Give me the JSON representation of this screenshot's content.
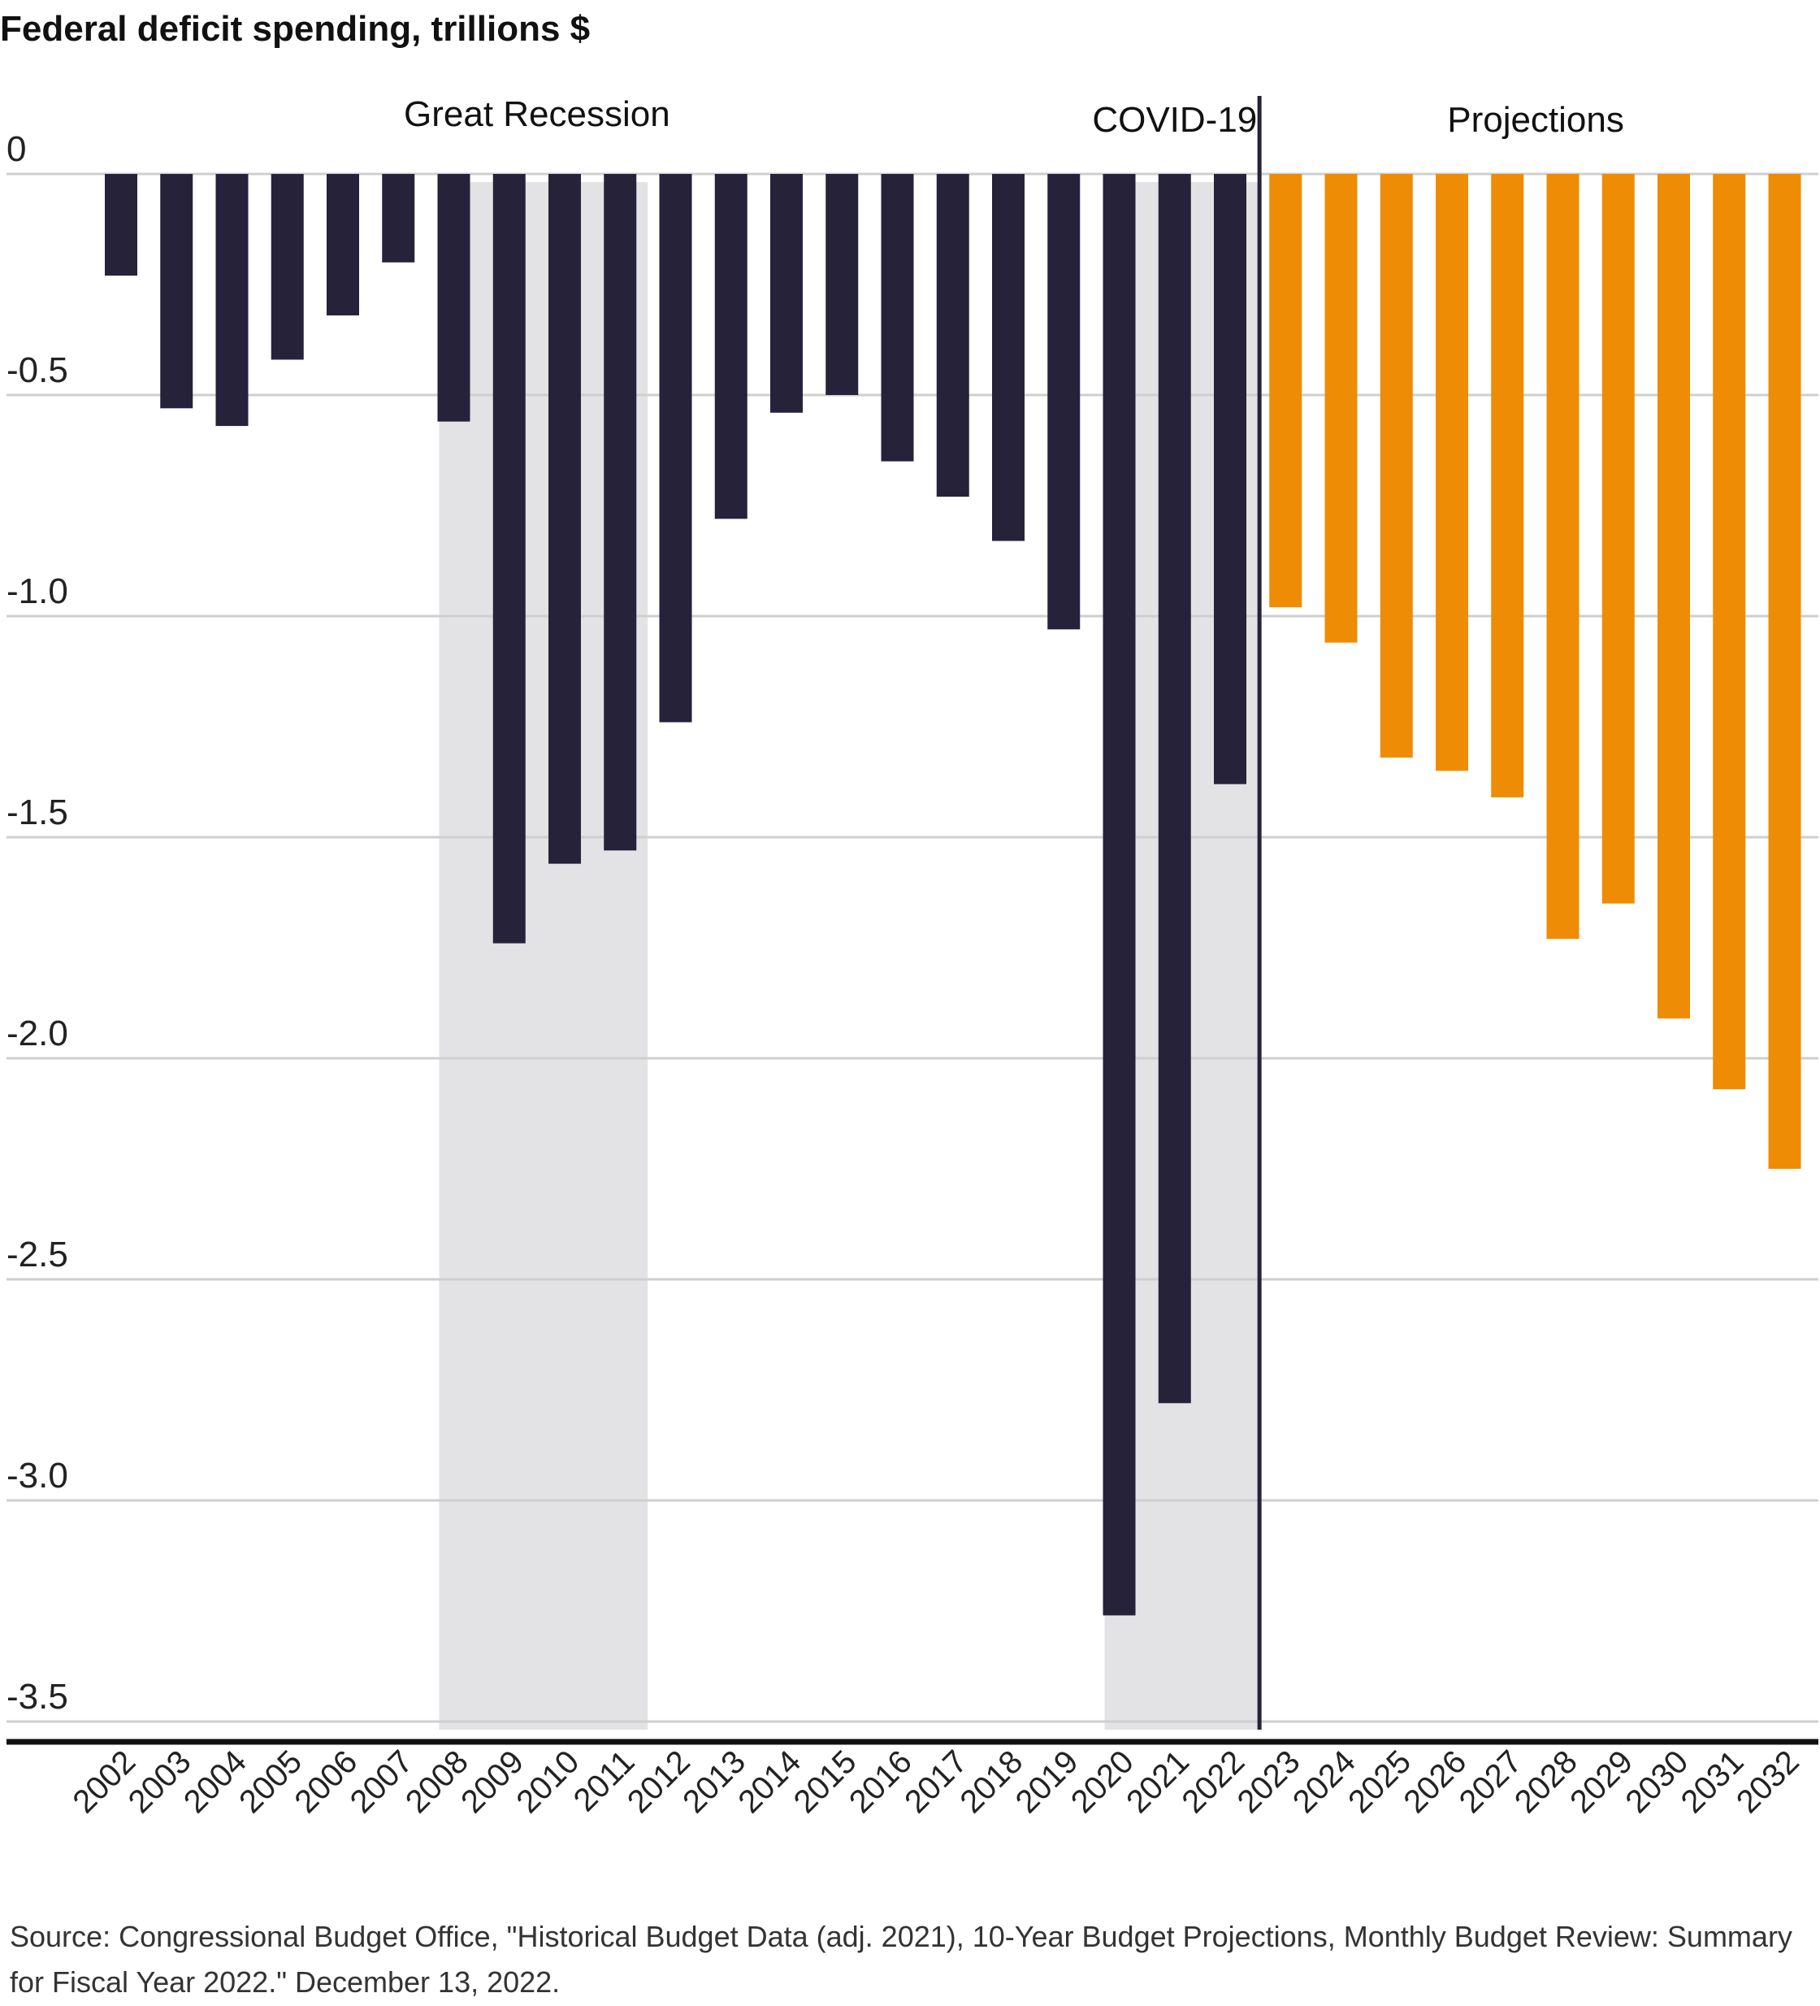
{
  "chart_data": {
    "type": "bar",
    "title": "Federal deficit spending, trillions $",
    "xlabel": "",
    "ylabel": "",
    "ylim": [
      -3.5,
      0
    ],
    "yticks": [
      0,
      -0.5,
      -1.0,
      -1.5,
      -2.0,
      -2.5,
      -3.0,
      -3.5
    ],
    "ytick_labels": [
      "0",
      "-0.5",
      "-1.0",
      "-1.5",
      "-2.0",
      "-2.5",
      "-3.0",
      "-3.5"
    ],
    "grid": true,
    "categories": [
      "2002",
      "2003",
      "2004",
      "2005",
      "2006",
      "2007",
      "2008",
      "2009",
      "2010",
      "2011",
      "2012",
      "2013",
      "2014",
      "2015",
      "2016",
      "2017",
      "2018",
      "2019",
      "2020",
      "2021",
      "2022",
      "2023",
      "2024",
      "2025",
      "2026",
      "2027",
      "2028",
      "2029",
      "2030",
      "2031",
      "2032"
    ],
    "values": [
      -0.23,
      -0.53,
      -0.57,
      -0.42,
      -0.32,
      -0.2,
      -0.56,
      -1.74,
      -1.56,
      -1.53,
      -1.24,
      -0.78,
      -0.54,
      -0.5,
      -0.65,
      -0.73,
      -0.83,
      -1.03,
      -3.26,
      -2.78,
      -1.38,
      -0.98,
      -1.06,
      -1.32,
      -1.35,
      -1.41,
      -1.73,
      -1.65,
      -1.91,
      -2.07,
      -2.25
    ],
    "colors": {
      "historical": "#25223a",
      "projection": "#ee8c05",
      "shading": "#e3e3e6",
      "divider": "#25223a"
    },
    "projection_start": "2023",
    "annotations": [
      {
        "label": "Great Recession",
        "span": [
          "2008",
          "2011"
        ]
      },
      {
        "label": "COVID-19",
        "span": [
          "2020",
          "2022"
        ]
      },
      {
        "label": "Projections",
        "span": [
          "2023",
          "2032"
        ]
      }
    ]
  },
  "source": "Source: Congressional Budget Office, \"Historical Budget Data (adj. 2021), 10-Year Budget Projections, Monthly Budget Review: Summary for Fiscal Year 2022.\" December 13, 2022."
}
